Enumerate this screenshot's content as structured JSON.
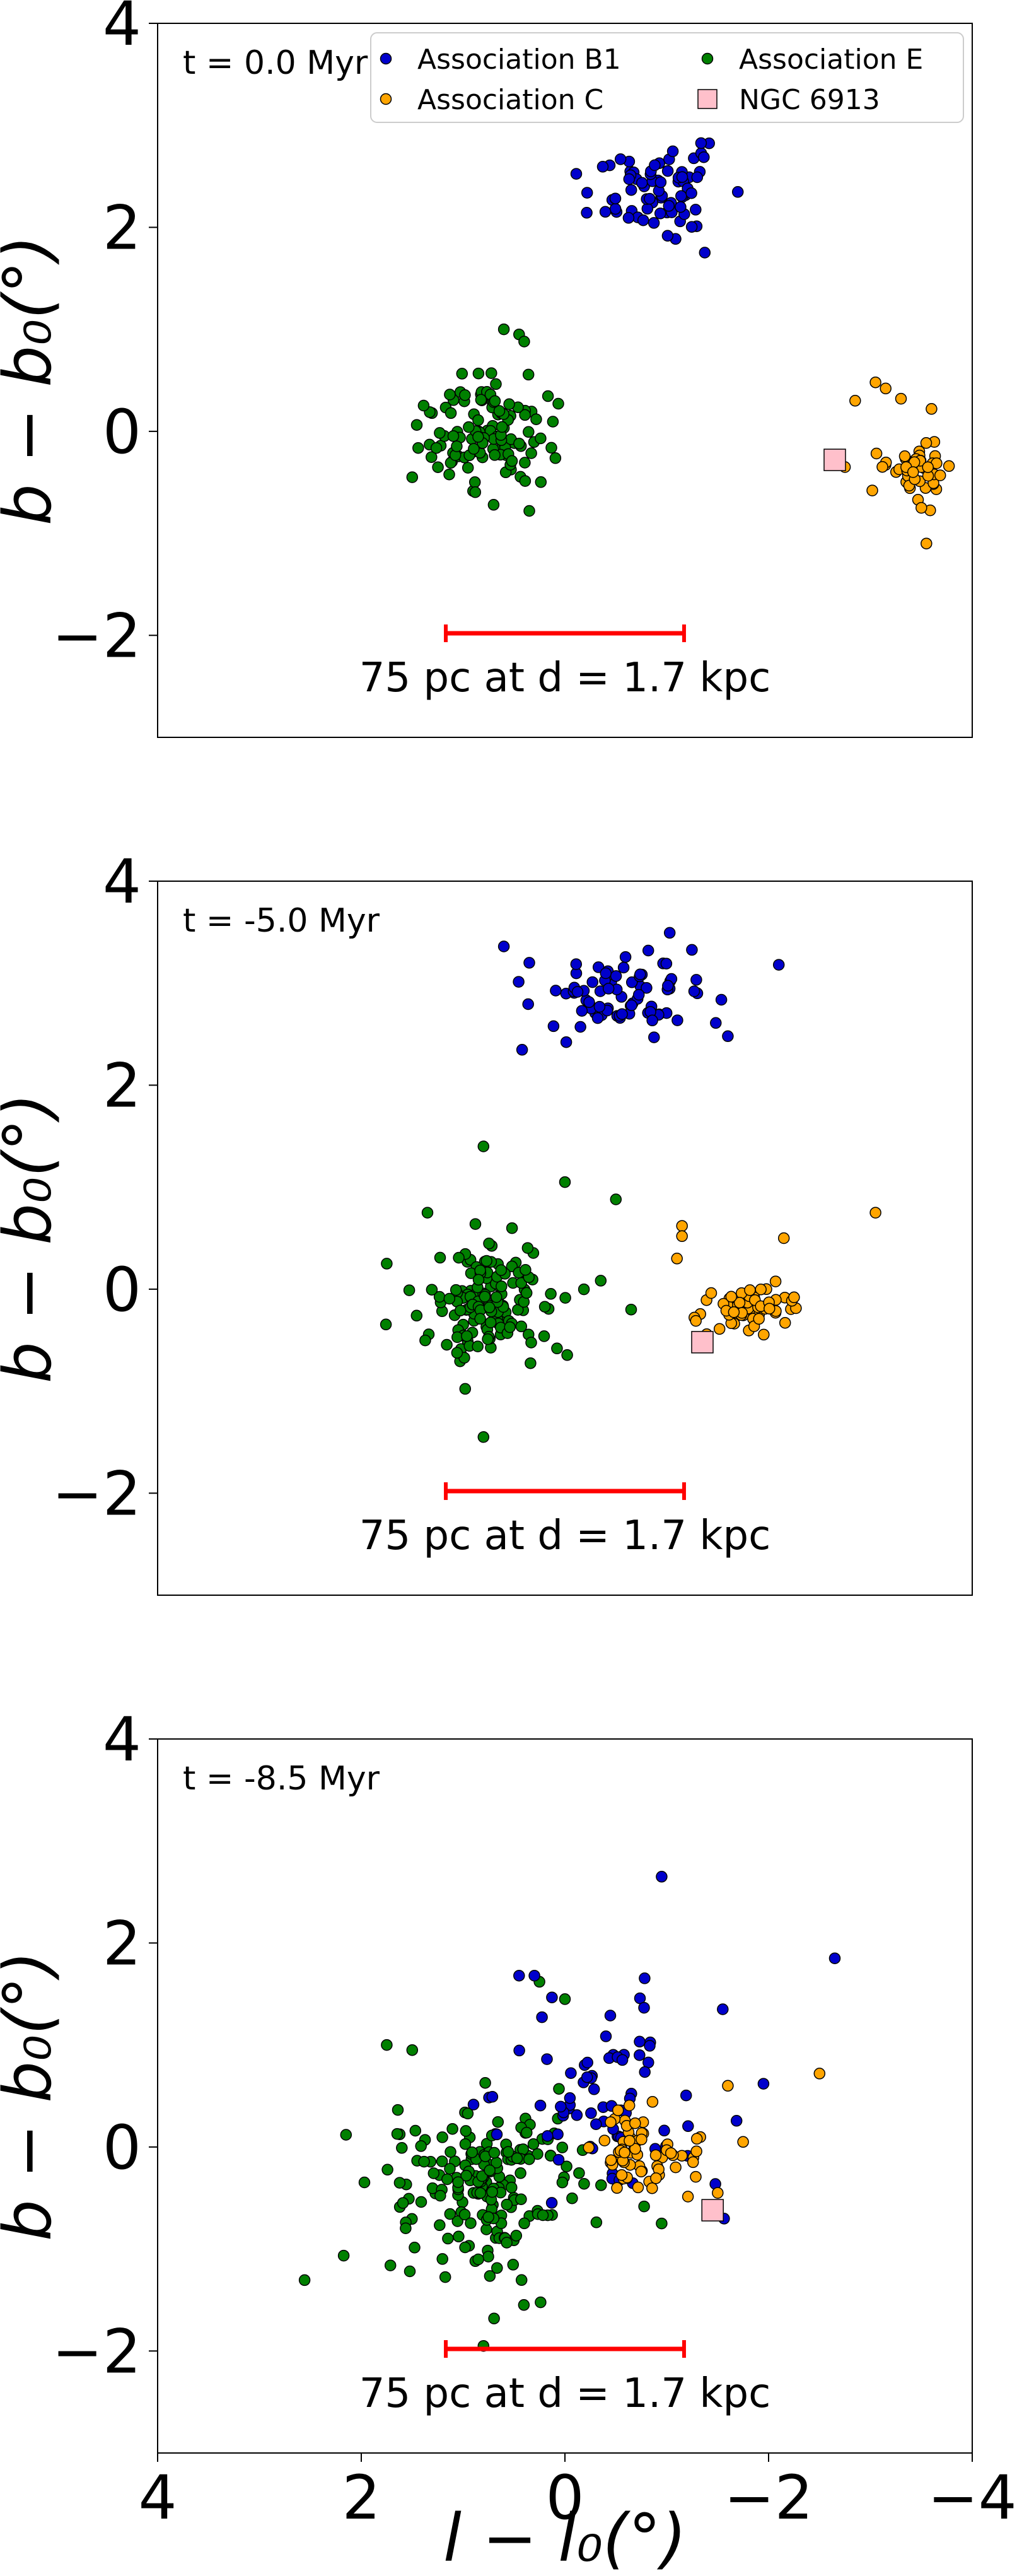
{
  "chart_data": {
    "type": "scatter",
    "shared": {
      "xlim": [
        4,
        -4
      ],
      "ylim": [
        -3,
        4
      ],
      "xticks": [
        4,
        2,
        0,
        -2,
        -4
      ],
      "xtick_labels": [
        "4",
        "2",
        "0",
        "−2",
        "−4"
      ],
      "yticks": [
        4,
        2,
        0,
        -2
      ],
      "ytick_labels": [
        "4",
        "2",
        "0",
        "−2"
      ],
      "xlabel": "l − l₀(°)",
      "ylabel": "b − b₀(°)",
      "scale_bar": {
        "x_range": [
          1.17,
          -1.17
        ],
        "y": -1.98,
        "label": "75 pc at d = 1.7 kpc",
        "color": "#ff0000"
      },
      "legend": {
        "placement": "top-right",
        "entries": [
          {
            "label": "Association B1",
            "color": "#0000cc",
            "marker": "circle"
          },
          {
            "label": "Association E",
            "color": "#008000",
            "marker": "circle"
          },
          {
            "label": "Association C",
            "color": "#ffa500",
            "marker": "circle"
          },
          {
            "label": "NGC 6913",
            "color": "#ffc0cb",
            "marker": "square"
          }
        ]
      }
    },
    "panels": [
      {
        "time_label": "t = 0.0 Myr",
        "show_legend": true,
        "show_xaxis": false,
        "groups": {
          "B1": {
            "cx": -0.9,
            "cy": 2.35,
            "sx": 0.45,
            "sy": 0.28,
            "n": 75,
            "seed": 11
          },
          "E": {
            "cx": 0.75,
            "cy": 0.0,
            "sx": 0.4,
            "sy": 0.32,
            "n": 120,
            "seed": 12
          },
          "C": {
            "cx": -3.5,
            "cy": -0.4,
            "sx": 0.25,
            "sy": 0.18,
            "n": 45,
            "seed": 13
          }
        },
        "extra_points": {
          "C": [
            [
              -3.15,
              0.42
            ],
            [
              -3.05,
              0.48
            ],
            [
              -3.3,
              0.32
            ],
            [
              -3.6,
              0.22
            ],
            [
              -2.85,
              0.3
            ],
            [
              -3.5,
              -0.75
            ],
            [
              -3.55,
              -1.1
            ],
            [
              -2.6,
              -0.28
            ],
            [
              -2.75,
              -0.35
            ]
          ],
          "E": [
            [
              0.6,
              1.0
            ],
            [
              0.45,
              0.95
            ],
            [
              0.4,
              0.88
            ],
            [
              0.7,
              -0.72
            ],
            [
              0.35,
              -0.78
            ],
            [
              1.5,
              -0.45
            ]
          ]
        },
        "ngc6913": [
          -2.65,
          -0.28
        ]
      },
      {
        "time_label": "t = -5.0 Myr",
        "show_legend": false,
        "show_xaxis": false,
        "groups": {
          "B1": {
            "cx": -0.6,
            "cy": 2.9,
            "sx": 0.55,
            "sy": 0.3,
            "n": 80,
            "seed": 21
          },
          "E": {
            "cx": 0.7,
            "cy": -0.1,
            "sx": 0.45,
            "sy": 0.35,
            "n": 140,
            "seed": 22
          },
          "C": {
            "cx": -1.85,
            "cy": -0.2,
            "sx": 0.35,
            "sy": 0.18,
            "n": 55,
            "seed": 23
          }
        },
        "extra_points": {
          "B1": [
            [
              -2.1,
              3.18
            ],
            [
              -1.6,
              2.48
            ],
            [
              0.6,
              3.36
            ],
            [
              0.35,
              3.2
            ]
          ],
          "E": [
            [
              1.75,
              0.25
            ],
            [
              1.35,
              0.75
            ],
            [
              0.8,
              1.4
            ],
            [
              0.8,
              -1.45
            ],
            [
              0.0,
              1.05
            ],
            [
              -0.5,
              0.88
            ],
            [
              -0.65,
              -0.2
            ]
          ],
          "C": [
            [
              -3.05,
              0.75
            ],
            [
              -2.15,
              0.5
            ],
            [
              -1.15,
              0.62
            ],
            [
              -1.15,
              0.52
            ],
            [
              -1.1,
              0.3
            ],
            [
              -2.25,
              -0.08
            ]
          ]
        },
        "ngc6913": [
          -1.35,
          -0.52
        ]
      },
      {
        "time_label": "t = -8.5 Myr",
        "show_legend": false,
        "show_xaxis": true,
        "groups": {
          "B1": {
            "cx": -0.4,
            "cy": 0.45,
            "sx": 0.6,
            "sy": 0.65,
            "n": 75,
            "seed": 31
          },
          "E": {
            "cx": 0.75,
            "cy": -0.35,
            "sx": 0.65,
            "sy": 0.55,
            "n": 190,
            "seed": 32
          },
          "C": {
            "cx": -0.75,
            "cy": -0.05,
            "sx": 0.35,
            "sy": 0.25,
            "n": 65,
            "seed": 33
          }
        },
        "extra_points": {
          "B1": [
            [
              -0.95,
              2.65
            ],
            [
              -2.65,
              1.85
            ],
            [
              -1.55,
              1.35
            ],
            [
              -1.95,
              0.62
            ],
            [
              0.45,
              1.68
            ],
            [
              0.3,
              1.68
            ]
          ],
          "E": [
            [
              2.15,
              0.12
            ],
            [
              1.75,
              1.0
            ],
            [
              1.5,
              0.95
            ],
            [
              0.8,
              -1.95
            ],
            [
              0.25,
              1.62
            ],
            [
              0.0,
              1.45
            ],
            [
              -0.95,
              -0.75
            ]
          ],
          "C": [
            [
              -2.5,
              0.72
            ],
            [
              -1.6,
              0.6
            ],
            [
              -1.75,
              0.05
            ],
            [
              -1.5,
              -0.45
            ]
          ]
        },
        "ngc6913": [
          -1.45,
          -0.62
        ]
      }
    ]
  }
}
